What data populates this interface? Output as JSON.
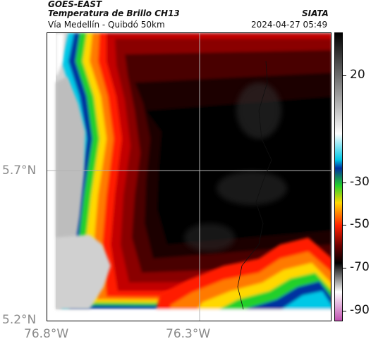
{
  "header": {
    "satellite": "GOES-EAST",
    "product": "Temperatura de Brillo CH13",
    "organization": "SIATA",
    "region": "Vía Medellín - Quibdó 50km",
    "datetime": "2024-04-27 05:49"
  },
  "map": {
    "lat_labels": [
      "5.7°N",
      "5.2°N"
    ],
    "lon_labels": [
      "76.8°W",
      "76.3°W"
    ]
  },
  "colorbar": {
    "tick_labels": [
      "20",
      "-30",
      "-50",
      "-70",
      "-90"
    ],
    "tick_values": [
      20,
      -30,
      -50,
      -70,
      -90
    ],
    "range": [
      -95,
      40
    ],
    "colors": [
      "#c050b0",
      "#ffffff",
      "#000000",
      "#6b0000",
      "#ff2000",
      "#ffd800",
      "#22d02a",
      "#0030a0",
      "#00c8e6",
      "#ffffff",
      "#000000"
    ]
  }
}
